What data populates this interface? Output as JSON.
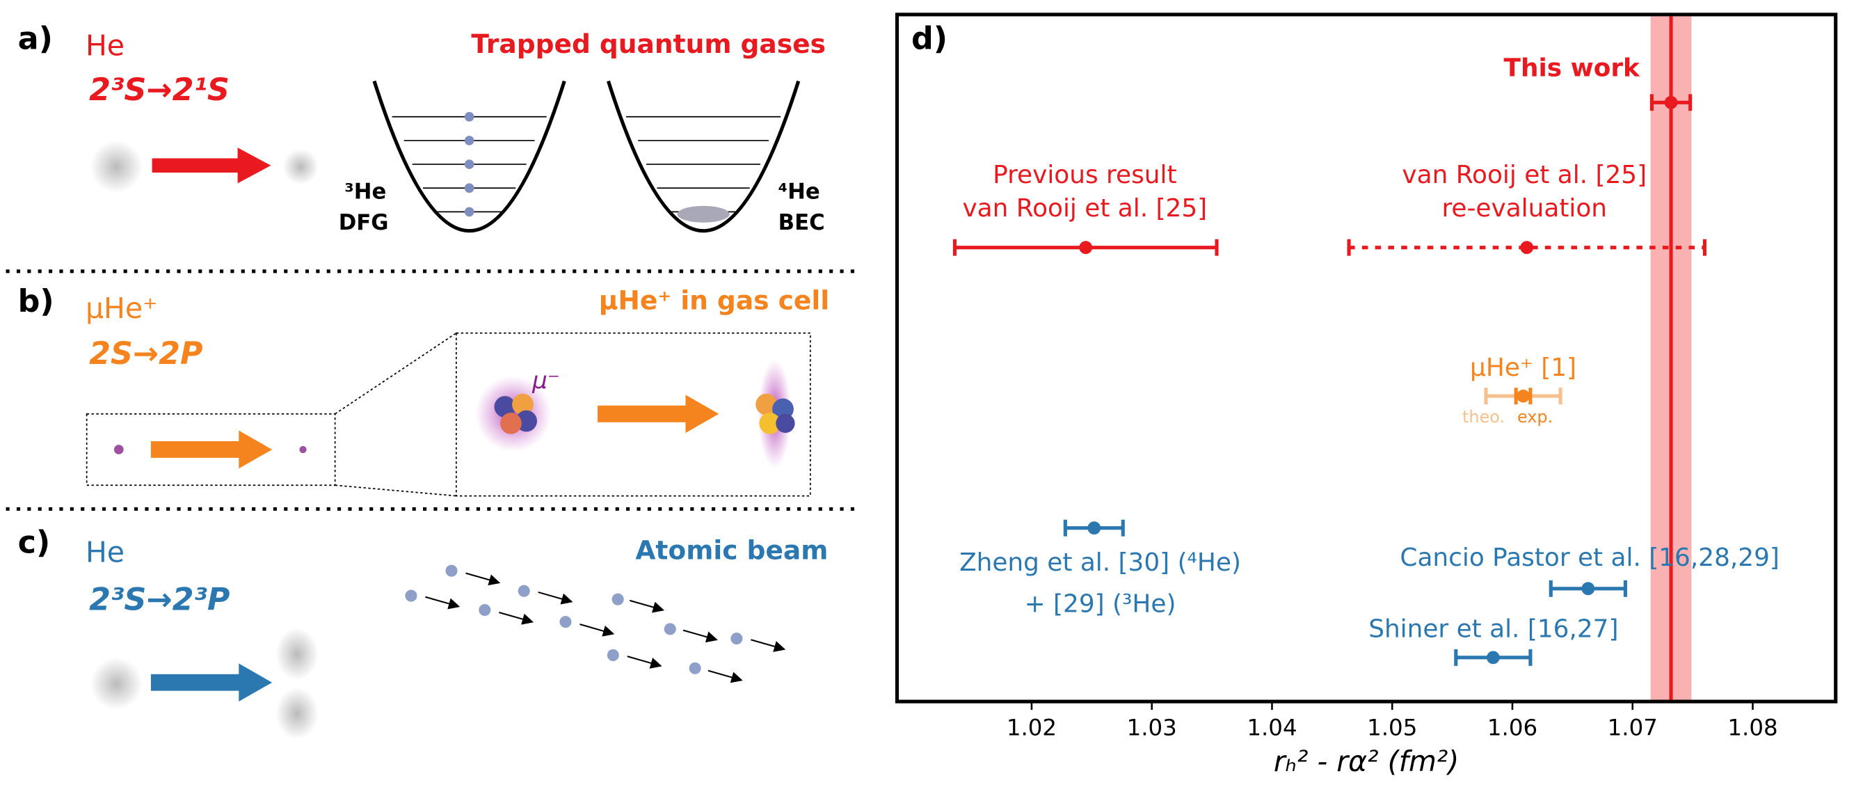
{
  "panels": {
    "a": {
      "letter": "a)",
      "species": "He",
      "transition": "2³S→2¹S",
      "title": "Trapped quantum gases",
      "left_trap": [
        "³He",
        "DFG"
      ],
      "right_trap": [
        "⁴He",
        "BEC"
      ]
    },
    "b": {
      "letter": "b)",
      "species": "μHe⁺",
      "transition": "2S→2P",
      "title": "μHe⁺ in gas cell",
      "muon": "μ⁻"
    },
    "c": {
      "letter": "c)",
      "species": "He",
      "transition": "2³S→2³P",
      "title": "Atomic beam"
    }
  },
  "chart_data": {
    "type": "errorbar",
    "panel_label": "d)",
    "xlabel": "rₕ² - rα² (fm²)",
    "xlim": [
      1.0088,
      1.0869
    ],
    "xticks": [
      1.02,
      1.03,
      1.04,
      1.05,
      1.06,
      1.07,
      1.08
    ],
    "points": [
      {
        "label": [
          "This work"
        ],
        "color": "#e8191f",
        "value": 1.0732,
        "error": 0.0016,
        "band_error": 0.0017,
        "band_color": "#f9b1b1"
      },
      {
        "label": [
          "Previous result",
          "van Rooij et al. [25]"
        ],
        "color": "#e8191f",
        "value": 1.0245,
        "error": 0.0109
      },
      {
        "label": [
          "van Rooij  et al. [25]",
          "re-evaluation"
        ],
        "color": "#e8191f",
        "value": 1.0612,
        "error": 0.0148,
        "dotted": true
      },
      {
        "label": [
          "μHe⁺ [1]"
        ],
        "color": "#f5841f",
        "value": 1.0609,
        "error": 0.0006,
        "theo_error": 0.0031,
        "theo_color": "#f5c08e",
        "theo_label": "theo.",
        "exp_label": "exp."
      },
      {
        "label": [
          "Zheng et al. [30] (⁴He)",
          "+ [29] (³He)"
        ],
        "color": "#2b77b0",
        "value": 1.0252,
        "error": 0.0024
      },
      {
        "label": [
          "Cancio Pastor et al. [16,28,29]"
        ],
        "color": "#2b77b0",
        "value": 1.0663,
        "error": 0.0031
      },
      {
        "label": [
          "Shiner et al. [16,27]"
        ],
        "color": "#2b77b0",
        "value": 1.0584,
        "error": 0.0031
      }
    ]
  }
}
